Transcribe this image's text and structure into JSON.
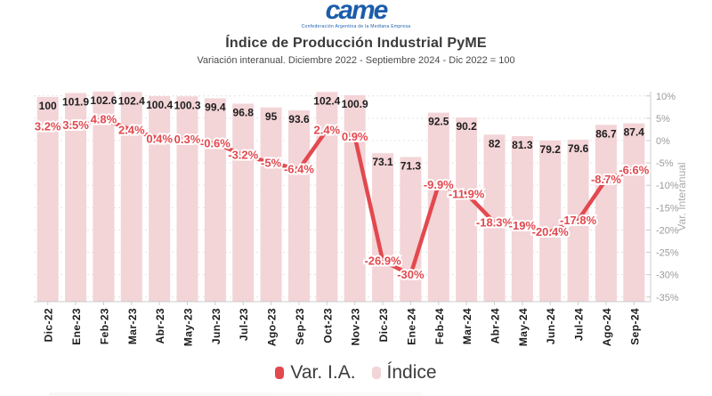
{
  "brand": {
    "logo_text": "came",
    "tagline": "Confederación Argentina de la Mediana Empresa",
    "logo_color": "#1b5dab"
  },
  "header": {
    "title": "Índice de Producción Industrial PyME",
    "subtitle": "Variación interanual. Diciembre 2022 - Septiembre 2024 - Dic 2022 = 100"
  },
  "legend": [
    {
      "label": "Var. I.A.",
      "color": "#e2494f"
    },
    {
      "label": "Índice",
      "color": "#f3d4d7"
    }
  ],
  "chart_data": {
    "type": "bar+line",
    "title": "Índice de Producción Industrial PyME",
    "subtitle": "Variación interanual. Diciembre 2022 - Septiembre 2024 - Dic 2022 = 100",
    "categories": [
      "Dic-22",
      "Ene-23",
      "Feb-23",
      "Mar-23",
      "Abr-23",
      "May-23",
      "Jun-23",
      "Jul-23",
      "Ago-23",
      "Sep-23",
      "Oct-23",
      "Nov-23",
      "Dic-23",
      "Ene-24",
      "Feb-24",
      "Mar-24",
      "Abr-24",
      "May-24",
      "Jun-24",
      "Jul-24",
      "Ago-24",
      "Sep-24"
    ],
    "series": [
      {
        "name": "Índice",
        "type": "bar",
        "color": "#f3d4d7",
        "values": [
          100,
          101.9,
          102.6,
          102.4,
          100.4,
          100.3,
          99.4,
          96.8,
          95,
          93.6,
          102.4,
          100.9,
          73.1,
          71.3,
          92.5,
          90.2,
          82,
          81.3,
          79.2,
          79.6,
          86.7,
          87.4
        ],
        "labels": [
          "100",
          "101.9",
          "102.6",
          "102.4",
          "100.4",
          "100.3",
          "99.4",
          "96.8",
          "95",
          "93.6",
          "102.4",
          "100.9",
          "73.1",
          "71.3",
          "92.5",
          "90.2",
          "82",
          "81.3",
          "79.2",
          "79.6",
          "86.7",
          "87.4"
        ]
      },
      {
        "name": "Var. I.A.",
        "type": "line",
        "color": "#e2494f",
        "values": [
          3.2,
          3.5,
          4.8,
          2.4,
          0.4,
          0.3,
          -0.6,
          -3.2,
          -5,
          -6.4,
          2.4,
          0.9,
          -26.9,
          -30,
          -9.9,
          -11.9,
          -18.3,
          -19,
          -20.4,
          -17.8,
          -8.7,
          -6.6
        ],
        "labels": [
          "3.2%",
          "3.5%",
          "4.8%",
          "2.4%",
          "0.4%",
          "0.3%",
          "-0.6%",
          "-3.2%",
          "-5%",
          "-6.4%",
          "2.4%",
          "0.9%",
          "-26.9%",
          "-30%",
          "-9.9%",
          "-11.9%",
          "-18.3%",
          "-19%",
          "-20.4%",
          "-17.8%",
          "-8.7%",
          "-6.6%"
        ]
      }
    ],
    "right_axis": {
      "label": "Var. Interanual",
      "tick_values": [
        10,
        5,
        0,
        -5,
        -10,
        -15,
        -20,
        -25,
        -30,
        -35
      ],
      "tick_labels": [
        "10%",
        "5%",
        "0%",
        "-5%",
        "-10%",
        "-15%",
        "-20%",
        "-25%",
        "-30%",
        "-35%"
      ],
      "range": [
        10,
        -35
      ]
    },
    "grid": "dashed-horizontal",
    "legend_position": "bottom"
  }
}
